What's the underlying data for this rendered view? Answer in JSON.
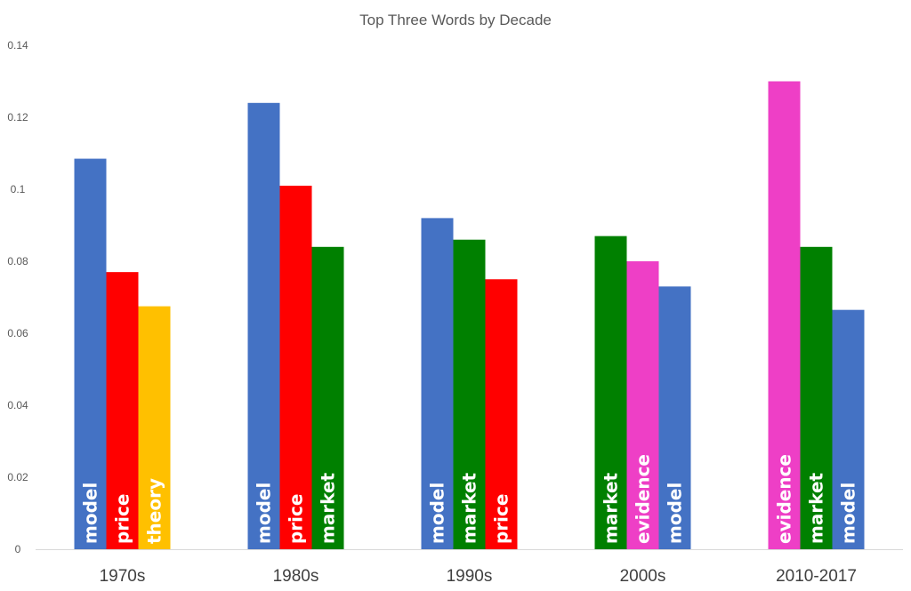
{
  "chart_data": {
    "type": "bar",
    "title": "Top Three Words by Decade",
    "xlabel": "",
    "ylabel": "",
    "ylim": [
      0,
      0.14
    ],
    "yticks": [
      "0",
      "0.02",
      "0.04",
      "0.06",
      "0.08",
      "0.1",
      "0.12",
      "0.14"
    ],
    "grid": false,
    "legend": "none",
    "colors": {
      "model": "#4472C4",
      "price": "#FF0000",
      "theory": "#FFC000",
      "market": "#008000",
      "evidence": "#EE3FC6"
    },
    "categories": [
      "1970s",
      "1980s",
      "1990s",
      "2000s",
      "2010-2017"
    ],
    "groups": [
      {
        "category": "1970s",
        "bars": [
          {
            "label": "model",
            "value": 0.1085
          },
          {
            "label": "price",
            "value": 0.077
          },
          {
            "label": "theory",
            "value": 0.0675
          }
        ]
      },
      {
        "category": "1980s",
        "bars": [
          {
            "label": "model",
            "value": 0.124
          },
          {
            "label": "price",
            "value": 0.101
          },
          {
            "label": "market",
            "value": 0.084
          }
        ]
      },
      {
        "category": "1990s",
        "bars": [
          {
            "label": "model",
            "value": 0.092
          },
          {
            "label": "market",
            "value": 0.086
          },
          {
            "label": "price",
            "value": 0.075
          }
        ]
      },
      {
        "category": "2000s",
        "bars": [
          {
            "label": "market",
            "value": 0.087
          },
          {
            "label": "evidence",
            "value": 0.08
          },
          {
            "label": "model",
            "value": 0.073
          }
        ]
      },
      {
        "category": "2010-2017",
        "bars": [
          {
            "label": "evidence",
            "value": 0.13
          },
          {
            "label": "market",
            "value": 0.084
          },
          {
            "label": "model",
            "value": 0.0665
          }
        ]
      }
    ]
  }
}
